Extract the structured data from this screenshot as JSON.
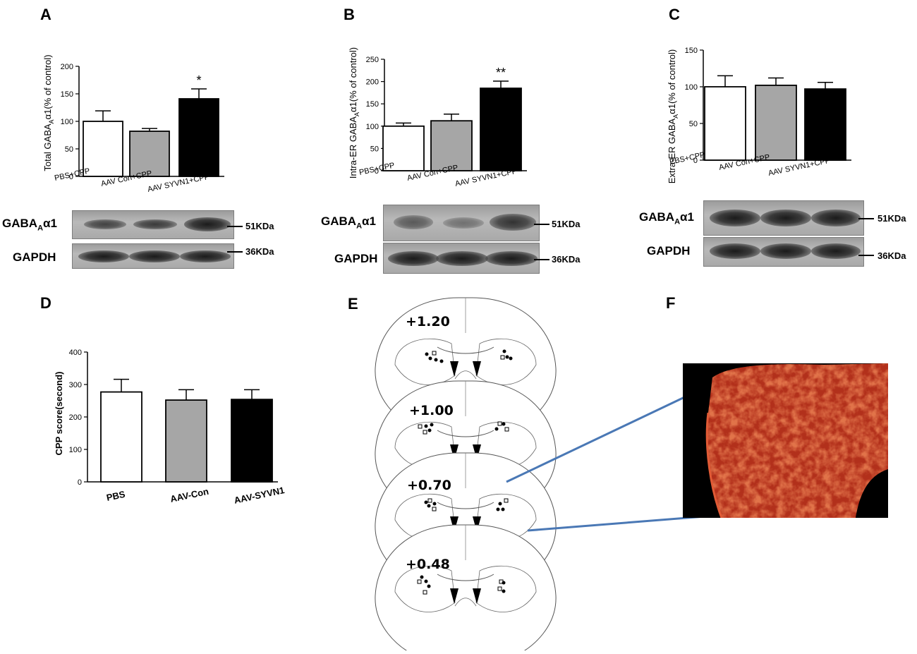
{
  "panels": {
    "A": "A",
    "B": "B",
    "C": "C",
    "D": "D",
    "E": "E",
    "F": "F"
  },
  "chart_data": [
    {
      "panel": "A",
      "type": "bar",
      "ylabel_main": "Total GABA",
      "ylabel_sub": "A",
      "ylabel_tail": "α1(% of control)",
      "categories": [
        "PBS+CPP",
        "AAV Con+CPP",
        "AAV SYVN1+CPP"
      ],
      "values": [
        100,
        82,
        141
      ],
      "errors": [
        19,
        5,
        18
      ],
      "fills": [
        "#ffffff",
        "#a6a6a6",
        "#000000"
      ],
      "ylim": [
        0,
        200
      ],
      "yticks": [
        "0",
        "50",
        "100",
        "150",
        "200"
      ],
      "annotations": [
        "",
        "",
        "*"
      ]
    },
    {
      "panel": "B",
      "type": "bar",
      "ylabel_main": "Intra-ER GABA",
      "ylabel_sub": "A",
      "ylabel_tail": "α1(% of control)",
      "categories": [
        "PBS+CPP",
        "AAV Con+CPP",
        "AAV SYVN1+CPP"
      ],
      "values": [
        100,
        112,
        185
      ],
      "errors": [
        7,
        15,
        16
      ],
      "fills": [
        "#ffffff",
        "#a6a6a6",
        "#000000"
      ],
      "ylim": [
        0,
        250
      ],
      "yticks": [
        "0",
        "50",
        "100",
        "150",
        "200",
        "250"
      ],
      "annotations": [
        "",
        "",
        "**"
      ]
    },
    {
      "panel": "C",
      "type": "bar",
      "ylabel_main": "Extra-ER GABA",
      "ylabel_sub": "A",
      "ylabel_tail": "α1(% of control)",
      "categories": [
        "PBS+CPP",
        "AAV Con+CPP",
        "AAV SYVN1+CPP"
      ],
      "values": [
        100,
        102,
        97
      ],
      "errors": [
        15,
        10,
        9
      ],
      "fills": [
        "#ffffff",
        "#a6a6a6",
        "#000000"
      ],
      "ylim": [
        0,
        150
      ],
      "yticks": [
        "0",
        "50",
        "100",
        "150"
      ],
      "annotations": [
        "",
        "",
        ""
      ]
    },
    {
      "panel": "D",
      "type": "bar",
      "ylabel_main": "CPP score(second)",
      "ylabel_sub": "",
      "ylabel_tail": "",
      "categories": [
        "PBS",
        "AAV-Con",
        "AAV-SYVN1"
      ],
      "values": [
        277,
        252,
        254
      ],
      "errors": [
        39,
        32,
        30
      ],
      "fills": [
        "#ffffff",
        "#a6a6a6",
        "#000000"
      ],
      "ylim": [
        0,
        400
      ],
      "yticks": [
        "0",
        "100",
        "200",
        "300",
        "400"
      ],
      "annotations": [
        "",
        "",
        ""
      ]
    }
  ],
  "blots": {
    "target_main": "GABA",
    "target_sub": "A",
    "target_tail": "α1",
    "control": "GAPDH",
    "kda_target": "51KDa",
    "kda_control": "36KDa"
  },
  "atlas": {
    "levels": [
      "+1.20",
      "+1.00",
      "+0.70",
      "+0.48"
    ]
  },
  "colors": {
    "connector": "#4a78b5",
    "micrograph": "#c0301a"
  }
}
